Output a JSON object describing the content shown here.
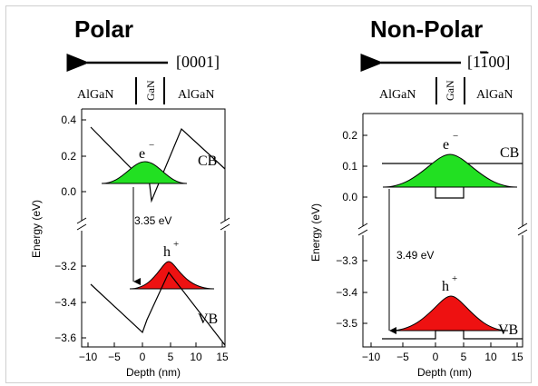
{
  "panels": [
    {
      "id": "polar",
      "title": "Polar",
      "direction": "[0001]",
      "layers": [
        "AlGaN",
        "GaN",
        "AlGaN"
      ],
      "ylabel": "Energy (eV)",
      "xlabel": "Depth (nm)",
      "xticks": [
        "−10",
        "−5",
        "0",
        "5",
        "10",
        "15"
      ],
      "yticks_upper": [
        "0.4",
        "0.2",
        "0.0"
      ],
      "yticks_lower": [
        "−3.2",
        "−3.4",
        "−3.6"
      ],
      "electron_label": "e",
      "electron_sup": "−",
      "hole_label": "h",
      "hole_sup": "+",
      "cb_label": "CB",
      "vb_label": "VB",
      "transition_label": "3.35 eV"
    },
    {
      "id": "nonpolar",
      "title": "Non-Polar",
      "direction_prefix": "[1",
      "direction_bar": "1",
      "direction_suffix": "00]",
      "layers": [
        "AlGaN",
        "GaN",
        "AlGaN"
      ],
      "ylabel": "Energy (eV)",
      "xlabel": "Depth (nm)",
      "xticks": [
        "−10",
        "−5",
        "0",
        "5",
        "10",
        "15"
      ],
      "yticks_upper": [
        "0.2",
        "0.1",
        "0.0"
      ],
      "yticks_lower": [
        "−3.3",
        "−3.4",
        "−3.5"
      ],
      "electron_label": "e",
      "electron_sup": "−",
      "hole_label": "h",
      "hole_sup": "+",
      "cb_label": "CB",
      "vb_label": "VB",
      "transition_label": "3.49 eV"
    }
  ],
  "colors": {
    "electron_fill": "#22e022",
    "hole_fill": "#ee1111",
    "line": "#000000"
  }
}
